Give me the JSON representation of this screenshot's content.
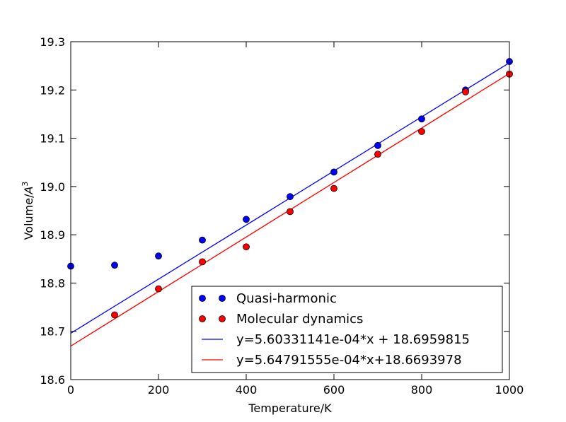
{
  "chart_data": {
    "type": "scatter",
    "xlabel": "Temperature/K",
    "ylabel_prefix": "Volume/",
    "ylabel_unit": "A",
    "ylabel_exp": "3",
    "xlim": [
      0,
      1000
    ],
    "ylim": [
      18.6,
      19.3
    ],
    "x_ticks": [
      0,
      200,
      400,
      600,
      800,
      1000
    ],
    "x_tick_labels": [
      "0",
      "200",
      "400",
      "600",
      "800",
      "1000"
    ],
    "y_ticks": [
      18.6,
      18.7,
      18.8,
      18.9,
      19.0,
      19.1,
      19.2,
      19.3
    ],
    "y_tick_labels": [
      "18.6",
      "18.7",
      "18.8",
      "18.9",
      "19.0",
      "19.1",
      "19.2",
      "19.3"
    ],
    "grid": false,
    "legend_position": "lower-right",
    "series": [
      {
        "name": "Quasi-harmonic",
        "kind": "markers",
        "color": "#0000ff",
        "x": [
          0,
          100,
          200,
          300,
          400,
          500,
          600,
          700,
          800,
          900,
          1000
        ],
        "y": [
          18.835,
          18.837,
          18.856,
          18.889,
          18.932,
          18.979,
          19.03,
          19.085,
          19.14,
          19.2,
          19.259
        ]
      },
      {
        "name": "Molecular dynamics",
        "kind": "markers",
        "color": "#ff0000",
        "x": [
          100,
          200,
          300,
          400,
          500,
          600,
          700,
          800,
          900,
          1000
        ],
        "y": [
          18.734,
          18.788,
          18.844,
          18.875,
          18.948,
          18.996,
          19.067,
          19.114,
          19.196,
          19.233
        ]
      },
      {
        "name": "y=5.60331141e-04*x + 18.6959815",
        "kind": "line",
        "color": "#0000ff",
        "slope": 0.000560331141,
        "intercept": 18.6959815
      },
      {
        "name": "y=5.64791555e-04*x+18.6693978",
        "kind": "line",
        "color": "#ff0000",
        "slope": 0.000564791555,
        "intercept": 18.6693978
      }
    ]
  }
}
